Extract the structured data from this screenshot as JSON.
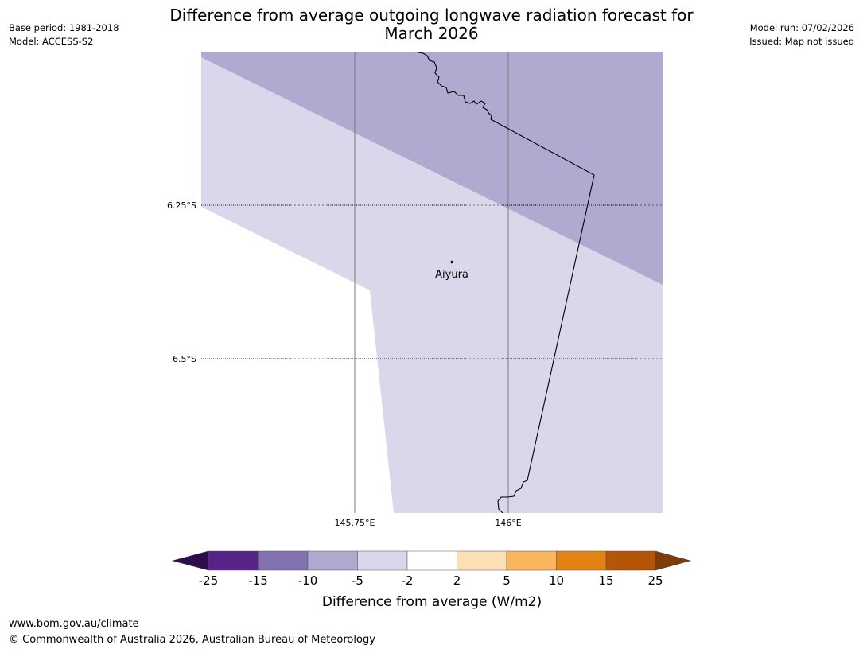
{
  "header": {
    "title_line1": "Difference from average outgoing longwave radiation forecast for",
    "title_line2": "March 2026",
    "base_period": "Base period: 1981-2018",
    "model": "Model: ACCESS-S2",
    "model_run": "Model run: 07/02/2026",
    "issued": "Issued: Map not issued"
  },
  "map": {
    "lat_labels": [
      "6.25°S",
      "6.5°S"
    ],
    "lon_labels": [
      "145.75°E",
      "146°E"
    ],
    "place": {
      "name": "Aiyura"
    },
    "colors": {
      "band_-10_-5": "#b0aad1",
      "band_-5_-2": "#d8d8ea",
      "band_-2_2": "#ffffff"
    }
  },
  "legend": {
    "title": "Difference from average (W/m2)",
    "ticks": [
      "-25",
      "-15",
      "-10",
      "-5",
      "-2",
      "2",
      "5",
      "10",
      "15",
      "25"
    ],
    "colors": [
      "#2e0d4f",
      "#57228a",
      "#8272b0",
      "#b0aad1",
      "#d8d8ea",
      "#ffffff",
      "#fde0b3",
      "#f9b65e",
      "#e28314",
      "#b45507",
      "#7f3b08"
    ]
  },
  "footer": {
    "url": "www.bom.gov.au/climate",
    "copyright": "© Commonwealth of Australia 2026, Australian Bureau of Meteorology"
  }
}
